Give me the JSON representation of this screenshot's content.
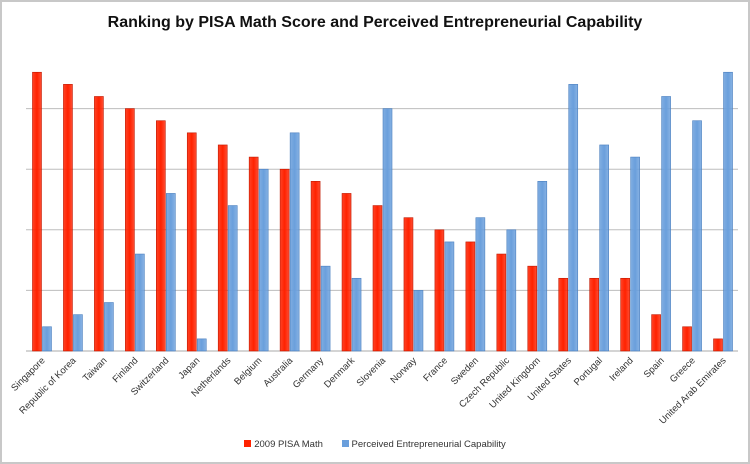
{
  "chart_data": {
    "type": "bar",
    "title": "Ranking by PISA Math Score and Perceived Entrepreneurial Capability",
    "xlabel": "",
    "ylabel": "",
    "ylim": [
      0,
      25
    ],
    "grid": true,
    "y_tick_labels_shown": false,
    "legend_position": "bottom",
    "categories": [
      "Singapore",
      "Republic of Korea",
      "Taiwan",
      "Finland",
      "Switzerland",
      "Japan",
      "Netherlands",
      "Belgium",
      "Australia",
      "Germany",
      "Denmark",
      "Slovenia",
      "Norway",
      "France",
      "Sweden",
      "Czech Republic",
      "United Kingdom",
      "United States",
      "Portugal",
      "Ireland",
      "Spain",
      "Greece",
      "United Arab Emirates"
    ],
    "series": [
      {
        "name": "2009 PISA Math",
        "color": "#ff2200",
        "values": [
          23,
          22,
          21,
          20,
          19,
          18,
          17,
          16,
          15,
          14,
          13,
          12,
          11,
          10,
          9,
          8,
          7,
          6,
          6,
          6,
          3,
          2,
          1
        ]
      },
      {
        "name": "Perceived Entrepreneurial Capability",
        "color": "#6a9fdc",
        "values": [
          2,
          3,
          4,
          8,
          13,
          1,
          12,
          15,
          18,
          7,
          6,
          20,
          5,
          9,
          11,
          10,
          14,
          22,
          17,
          16,
          21,
          19,
          23
        ]
      }
    ]
  }
}
